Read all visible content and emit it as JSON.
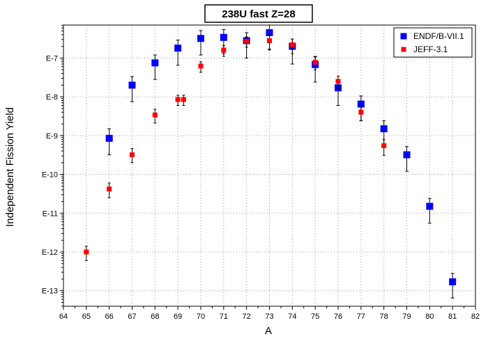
{
  "chart_data": {
    "type": "scatter",
    "title": "238U fast Z=28",
    "xlabel": "A",
    "ylabel": "Independent Fission Yield",
    "xlim": [
      64,
      82
    ],
    "ylim_log10": [
      -13.4,
      -6.15
    ],
    "yscale": "log",
    "grid": true,
    "legend_position": "top-right",
    "x_ticks": [
      "64",
      "65",
      "66",
      "67",
      "68",
      "69",
      "70",
      "71",
      "72",
      "73",
      "74",
      "75",
      "76",
      "77",
      "78",
      "79",
      "80",
      "81",
      "82"
    ],
    "y_ticks": [
      {
        "exp": -7,
        "label": "E-7"
      },
      {
        "exp": -8,
        "label": "E-8"
      },
      {
        "exp": -9,
        "label": "E-9"
      },
      {
        "exp": -10,
        "label": "E-10"
      },
      {
        "exp": -11,
        "label": "E-11"
      },
      {
        "exp": -12,
        "label": "E-12"
      },
      {
        "exp": -13,
        "label": "E-13"
      }
    ],
    "series": [
      {
        "name": "ENDF/B-VII.1",
        "color": "#0000ff",
        "marker": "square-large",
        "points": [
          {
            "x": 66,
            "y": 8.5e-10,
            "ylo": 3.2e-10,
            "yhi": 1.5e-09
          },
          {
            "x": 67,
            "y": 2e-08,
            "ylo": 7.5e-09,
            "yhi": 3.3e-08
          },
          {
            "x": 68,
            "y": 7.5e-08,
            "ylo": 2.8e-08,
            "yhi": 1.2e-07
          },
          {
            "x": 69,
            "y": 1.8e-07,
            "ylo": 6.5e-08,
            "yhi": 2.9e-07
          },
          {
            "x": 70,
            "y": 3.2e-07,
            "ylo": 1.2e-07,
            "yhi": 5.1e-07
          },
          {
            "x": 71,
            "y": 3.4e-07,
            "ylo": 1.3e-07,
            "yhi": 5.4e-07
          },
          {
            "x": 72,
            "y": 2.8e-07,
            "ylo": 1e-07,
            "yhi": 4.5e-07
          },
          {
            "x": 73,
            "y": 4.5e-07,
            "ylo": 1.7e-07,
            "yhi": 7.1e-07
          },
          {
            "x": 74,
            "y": 2e-07,
            "ylo": 7e-08,
            "yhi": 3.1e-07
          },
          {
            "x": 75,
            "y": 6.8e-08,
            "ylo": 2.4e-08,
            "yhi": 1.1e-07
          },
          {
            "x": 76,
            "y": 1.7e-08,
            "ylo": 6e-09,
            "yhi": 2.8e-08
          },
          {
            "x": 77,
            "y": 6.5e-09,
            "ylo": 2.4e-09,
            "yhi": 1.05e-08
          },
          {
            "x": 78,
            "y": 1.5e-09,
            "ylo": 5.6e-10,
            "yhi": 2.4e-09
          },
          {
            "x": 79,
            "y": 3.2e-10,
            "ylo": 1.2e-10,
            "yhi": 5.2e-10
          },
          {
            "x": 80,
            "y": 1.5e-11,
            "ylo": 5.5e-12,
            "yhi": 2.4e-11
          },
          {
            "x": 81,
            "y": 1.7e-13,
            "ylo": 6.5e-14,
            "yhi": 2.8e-13
          }
        ]
      },
      {
        "name": "JEFF-3.1",
        "color": "#ff0000",
        "marker": "square-small",
        "points": [
          {
            "x": 65,
            "y": 1e-12,
            "ylo": 6e-13,
            "yhi": 1.4e-12
          },
          {
            "x": 66,
            "y": 4.2e-11,
            "ylo": 2.5e-11,
            "yhi": 6e-11
          },
          {
            "x": 67,
            "y": 3.2e-10,
            "ylo": 2e-10,
            "yhi": 4.6e-10
          },
          {
            "x": 68,
            "y": 3.4e-09,
            "ylo": 2.1e-09,
            "yhi": 4.8e-09
          },
          {
            "x": 69,
            "y": 8.5e-09,
            "ylo": 6e-09,
            "yhi": 1.1e-08
          },
          {
            "x": 69.25,
            "y": 8.5e-09,
            "ylo": 6e-09,
            "yhi": 1.1e-08
          },
          {
            "x": 70,
            "y": 6.2e-08,
            "ylo": 4.3e-08,
            "yhi": 8e-08
          },
          {
            "x": 71,
            "y": 1.6e-07,
            "ylo": 1.1e-07,
            "yhi": 2.1e-07
          },
          {
            "x": 72,
            "y": 2.7e-07,
            "ylo": 1.9e-07,
            "yhi": 3.5e-07
          },
          {
            "x": 73,
            "y": 2.8e-07,
            "ylo": 1.6e-07,
            "yhi": 4e-07
          },
          {
            "x": 74,
            "y": 2.2e-07,
            "ylo": 1.3e-07,
            "yhi": 3.1e-07
          },
          {
            "x": 75,
            "y": 7.8e-08,
            "ylo": 5e-08,
            "yhi": 1.06e-07
          },
          {
            "x": 76,
            "y": 2.5e-08,
            "ylo": 1.6e-08,
            "yhi": 3.4e-08
          },
          {
            "x": 77,
            "y": 4e-09,
            "ylo": 2.4e-09,
            "yhi": 5.6e-09
          },
          {
            "x": 78,
            "y": 5.5e-10,
            "ylo": 3.1e-10,
            "yhi": 8e-10
          }
        ]
      }
    ]
  }
}
